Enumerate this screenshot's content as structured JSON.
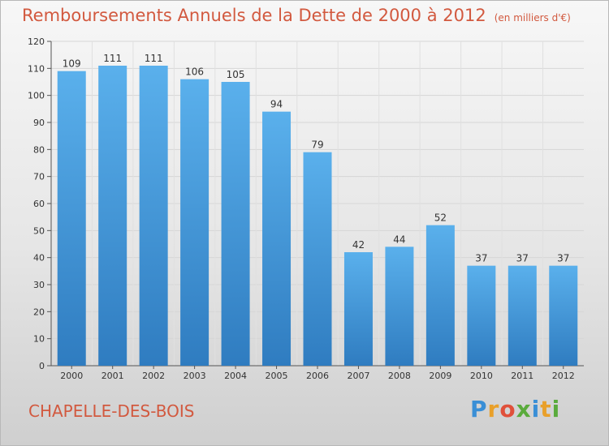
{
  "title": "Remboursements Annuels de la Dette de 2000 à 2012",
  "unit_note": "(en milliers d'€)",
  "commune": "CHAPELLE-DES-BOIS",
  "logo": {
    "text": "Proxiti",
    "letter_colors": [
      "#3a8fd6",
      "#e9a02a",
      "#e0503a",
      "#5aab3c",
      "#3a8fd6",
      "#e9a02a",
      "#5aab3c"
    ]
  },
  "chart_data": {
    "type": "bar",
    "title": "Remboursements Annuels de la Dette de 2000 à 2012",
    "xlabel": "",
    "ylabel": "",
    "categories": [
      "2000",
      "2001",
      "2002",
      "2003",
      "2004",
      "2005",
      "2006",
      "2007",
      "2008",
      "2009",
      "2010",
      "2011",
      "2012"
    ],
    "values": [
      109,
      111,
      111,
      106,
      105,
      94,
      79,
      42,
      44,
      52,
      37,
      37,
      37
    ],
    "ylim": [
      0,
      120
    ],
    "yticks": [
      0,
      10,
      20,
      30,
      40,
      50,
      60,
      70,
      80,
      90,
      100,
      110,
      120
    ],
    "grid": true,
    "bar_color_top": "#5ab0ec",
    "bar_color_bottom": "#2f7cc0"
  }
}
